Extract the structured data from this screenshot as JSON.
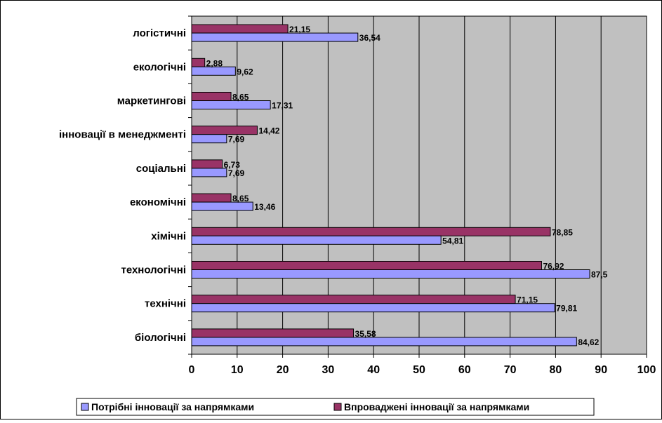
{
  "chart_data": {
    "type": "bar",
    "orientation": "horizontal",
    "categories": [
      "логістичні",
      "екологічні",
      "маркетингові",
      "інновації в менеджменті",
      "соціальні",
      "економічні",
      "хімічні",
      "технологічні",
      "технічні",
      "біологічні"
    ],
    "series": [
      {
        "name": "Впроваджені інновації за напрямками",
        "color": "#993366",
        "values": [
          21.15,
          2.88,
          8.65,
          14.42,
          6.73,
          8.65,
          78.85,
          76.92,
          71.15,
          35.58
        ],
        "labels": [
          "21,15",
          "2,88",
          "8,65",
          "14,42",
          "6,73",
          "8,65",
          "78,85",
          "76,92",
          "71,15",
          "35,58"
        ]
      },
      {
        "name": "Потрібні інновації за напрямками",
        "color": "#9999ff",
        "values": [
          36.54,
          9.62,
          17.31,
          7.69,
          7.69,
          13.46,
          54.81,
          87.5,
          79.81,
          84.62
        ],
        "labels": [
          "36,54",
          "9,62",
          "17,31",
          "7,69",
          "7,69",
          "13,46",
          "54,81",
          "87,5",
          "79,81",
          "84,62"
        ]
      }
    ],
    "xlim": [
      0,
      100
    ],
    "x_ticks": [
      0,
      10,
      20,
      30,
      40,
      50,
      60,
      70,
      80,
      90,
      100
    ],
    "grid": "vertical",
    "plot_background": "#c0c0c0",
    "legend_position": "bottom",
    "legend_order": [
      "Потрібні інновації за напрямками",
      "Впроваджені інновації за напрямками"
    ]
  }
}
